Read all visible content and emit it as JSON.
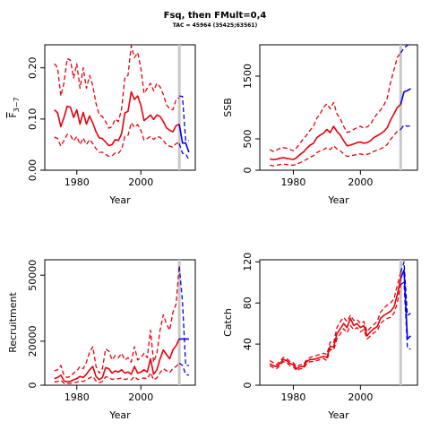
{
  "title": "Fsq, then FMult=0,4",
  "subtitle": "TAC = 45964 (35425;63561)",
  "colors": {
    "historic": "#e8000b",
    "projection": "#0000ee",
    "divider": "#c8c8c8"
  },
  "divider_year": 2012,
  "chart_data": [
    {
      "type": "line",
      "name": "fbar",
      "xlabel": "Year",
      "ylabel_main": "F",
      "ylabel_sub": "3−7",
      "xlim": [
        1970,
        2017
      ],
      "ylim": [
        0,
        0.245
      ],
      "xticks": [
        1980,
        2000
      ],
      "yticks": [
        0.0,
        0.1,
        0.2
      ],
      "ytick_labels": [
        "0.00",
        "0.10",
        "0.20"
      ],
      "historic": {
        "years": [
          1973,
          1974,
          1975,
          1976,
          1977,
          1978,
          1979,
          1980,
          1981,
          1982,
          1983,
          1984,
          1985,
          1986,
          1987,
          1988,
          1989,
          1990,
          1991,
          1992,
          1993,
          1994,
          1995,
          1996,
          1997,
          1998,
          1999,
          2000,
          2001,
          2002,
          2003,
          2004,
          2005,
          2006,
          2007,
          2008,
          2009,
          2010,
          2011,
          2012
        ],
        "mean": [
          0.118,
          0.112,
          0.085,
          0.103,
          0.125,
          0.123,
          0.103,
          0.118,
          0.09,
          0.113,
          0.09,
          0.106,
          0.092,
          0.075,
          0.063,
          0.062,
          0.055,
          0.048,
          0.05,
          0.06,
          0.058,
          0.072,
          0.112,
          0.115,
          0.153,
          0.138,
          0.145,
          0.127,
          0.097,
          0.102,
          0.108,
          0.099,
          0.108,
          0.105,
          0.095,
          0.083,
          0.078,
          0.075,
          0.087,
          0.09
        ],
        "upper": [
          0.208,
          0.2,
          0.145,
          0.17,
          0.218,
          0.215,
          0.18,
          0.208,
          0.16,
          0.2,
          0.16,
          0.185,
          0.165,
          0.13,
          0.108,
          0.105,
          0.095,
          0.082,
          0.085,
          0.1,
          0.095,
          0.12,
          0.182,
          0.185,
          0.243,
          0.22,
          0.23,
          0.2,
          0.15,
          0.16,
          0.17,
          0.155,
          0.17,
          0.163,
          0.148,
          0.128,
          0.12,
          0.118,
          0.138,
          0.142
        ],
        "lower": [
          0.065,
          0.062,
          0.047,
          0.058,
          0.07,
          0.068,
          0.057,
          0.066,
          0.05,
          0.063,
          0.05,
          0.06,
          0.052,
          0.042,
          0.035,
          0.035,
          0.031,
          0.027,
          0.028,
          0.034,
          0.033,
          0.041,
          0.066,
          0.068,
          0.093,
          0.084,
          0.089,
          0.078,
          0.059,
          0.062,
          0.066,
          0.06,
          0.066,
          0.064,
          0.058,
          0.05,
          0.047,
          0.045,
          0.052,
          0.054
        ]
      },
      "projection": {
        "years": [
          2012,
          2013,
          2014,
          2015
        ],
        "mean": [
          0.09,
          0.053,
          0.053,
          0.035
        ],
        "upper": [
          0.145,
          0.144,
          0.058,
          0.058
        ],
        "lower": [
          0.052,
          0.033,
          0.032,
          0.02
        ]
      }
    },
    {
      "type": "line",
      "name": "ssb",
      "xlabel": "Year",
      "ylabel_main": "SSB",
      "ylabel_sub": "",
      "xlim": [
        1970,
        2017
      ],
      "ylim": [
        0,
        2000
      ],
      "xticks": [
        1980,
        2000
      ],
      "yticks": [
        0,
        500,
        1500
      ],
      "ytick_labels": [
        "0",
        "500",
        "1500"
      ],
      "historic": {
        "years": [
          1973,
          1974,
          1975,
          1976,
          1977,
          1978,
          1979,
          1980,
          1981,
          1982,
          1983,
          1984,
          1985,
          1986,
          1987,
          1988,
          1989,
          1990,
          1991,
          1992,
          1993,
          1994,
          1995,
          1996,
          1997,
          1998,
          1999,
          2000,
          2001,
          2002,
          2003,
          2004,
          2005,
          2006,
          2007,
          2008,
          2009,
          2010,
          2011,
          2012
        ],
        "mean": [
          180,
          170,
          175,
          190,
          200,
          190,
          180,
          170,
          200,
          250,
          290,
          350,
          400,
          430,
          520,
          560,
          590,
          650,
          600,
          700,
          620,
          560,
          470,
          390,
          400,
          420,
          440,
          450,
          430,
          440,
          470,
          520,
          550,
          580,
          620,
          680,
          800,
          900,
          1000,
          1050
        ],
        "upper": [
          330,
          300,
          320,
          350,
          360,
          350,
          330,
          310,
          360,
          430,
          500,
          560,
          640,
          700,
          830,
          900,
          1000,
          1060,
          980,
          1080,
          900,
          820,
          700,
          600,
          620,
          650,
          680,
          700,
          670,
          690,
          730,
          830,
          900,
          960,
          1040,
          1150,
          1400,
          1600,
          1800,
          1870
        ],
        "lower": [
          80,
          70,
          80,
          90,
          95,
          90,
          85,
          80,
          95,
          120,
          145,
          175,
          210,
          230,
          280,
          310,
          330,
          360,
          330,
          390,
          340,
          310,
          260,
          220,
          230,
          240,
          250,
          260,
          245,
          255,
          270,
          300,
          320,
          340,
          370,
          410,
          490,
          560,
          620,
          650
        ]
      },
      "projection": {
        "years": [
          2012,
          2013,
          2014,
          2015
        ],
        "mean": [
          1050,
          1250,
          1270,
          1300
        ],
        "upper": [
          1870,
          1950,
          1990,
          2030
        ],
        "lower": [
          650,
          720,
          700,
          710
        ]
      }
    },
    {
      "type": "line",
      "name": "recruitment",
      "xlabel": "Year",
      "ylabel_main": "Recruitment",
      "ylabel_sub": "",
      "xlim": [
        1970,
        2017
      ],
      "ylim": [
        0,
        57000
      ],
      "xticks": [
        1980,
        2000
      ],
      "yticks": [
        0,
        20000,
        50000
      ],
      "ytick_labels": [
        "0",
        "20000",
        "50000"
      ],
      "historic": {
        "years": [
          1973,
          1974,
          1975,
          1976,
          1977,
          1978,
          1979,
          1980,
          1981,
          1982,
          1983,
          1984,
          1985,
          1986,
          1987,
          1988,
          1989,
          1990,
          1991,
          1992,
          1993,
          1994,
          1995,
          1996,
          1997,
          1998,
          1999,
          2000,
          2001,
          2002,
          2003,
          2004,
          2005,
          2006,
          2007,
          2008,
          2009,
          2010,
          2011,
          2012
        ],
        "mean": [
          3000,
          3500,
          4500,
          2000,
          1500,
          1800,
          2500,
          3000,
          4000,
          3500,
          5000,
          7000,
          8500,
          4000,
          2500,
          3500,
          8000,
          7500,
          5500,
          6500,
          6000,
          7000,
          5500,
          6000,
          5000,
          8500,
          5500,
          6000,
          7000,
          6000,
          12000,
          5000,
          7000,
          12000,
          16000,
          14000,
          12000,
          16000,
          18000,
          21000
        ],
        "upper": [
          6500,
          7000,
          9000,
          4500,
          3500,
          4000,
          5500,
          6500,
          8500,
          7500,
          10500,
          15000,
          17500,
          8500,
          5500,
          7500,
          16500,
          15500,
          11500,
          13500,
          12500,
          14500,
          11500,
          12500,
          10500,
          17500,
          11500,
          12500,
          14500,
          12500,
          25000,
          10500,
          14500,
          25000,
          32000,
          28000,
          25000,
          33000,
          37000,
          54000
        ],
        "lower": [
          1500,
          1700,
          2200,
          900,
          700,
          850,
          1200,
          1400,
          1900,
          1700,
          2400,
          3300,
          4000,
          1900,
          1200,
          1700,
          3800,
          3600,
          2600,
          3100,
          2900,
          3300,
          2600,
          2900,
          2400,
          4000,
          2600,
          2900,
          3300,
          2900,
          5700,
          2400,
          3300,
          5700,
          7500,
          6600,
          5700,
          7600,
          8500,
          10000
        ]
      },
      "projection": {
        "years": [
          2012,
          2013,
          2014,
          2015
        ],
        "mean": [
          21000,
          21000,
          21000,
          21000
        ],
        "upper": [
          54000,
          38000,
          9000,
          9000
        ],
        "lower": [
          10000,
          9000,
          5000,
          4500
        ]
      }
    },
    {
      "type": "line",
      "name": "catch",
      "xlabel": "Year",
      "ylabel_main": "Catch",
      "ylabel_sub": "",
      "xlim": [
        1970,
        2017
      ],
      "ylim": [
        0,
        122
      ],
      "xticks": [
        1980,
        2000
      ],
      "yticks": [
        0,
        40,
        80,
        120
      ],
      "ytick_labels": [
        "0",
        "40",
        "80",
        "120"
      ],
      "historic": {
        "years": [
          1973,
          1974,
          1975,
          1976,
          1977,
          1978,
          1979,
          1980,
          1981,
          1982,
          1983,
          1984,
          1985,
          1986,
          1987,
          1988,
          1989,
          1990,
          1991,
          1992,
          1993,
          1994,
          1995,
          1996,
          1997,
          1998,
          1999,
          2000,
          2001,
          2002,
          2003,
          2004,
          2005,
          2006,
          2007,
          2008,
          2009,
          2010,
          2011,
          2012
        ],
        "mean": [
          21,
          19,
          18,
          21,
          25,
          24,
          21,
          20,
          16,
          18,
          18,
          23,
          25,
          25,
          26,
          27,
          28,
          27,
          38,
          37,
          50,
          55,
          60,
          56,
          65,
          58,
          60,
          56,
          58,
          48,
          52,
          55,
          57,
          65,
          68,
          70,
          72,
          76,
          88,
          104
        ],
        "upper": [
          24,
          22,
          20,
          23,
          27,
          26,
          23,
          22,
          18,
          20,
          20,
          25,
          27,
          28,
          29,
          30,
          31,
          30,
          42,
          41,
          56,
          62,
          66,
          62,
          68,
          63,
          64,
          60,
          62,
          52,
          56,
          59,
          62,
          71,
          75,
          78,
          80,
          84,
          97,
          110
        ],
        "lower": [
          19,
          17,
          16,
          19,
          23,
          22,
          19,
          18,
          14,
          16,
          16,
          21,
          23,
          23,
          24,
          25,
          26,
          24,
          35,
          34,
          45,
          50,
          55,
          51,
          58,
          54,
          56,
          52,
          54,
          45,
          48,
          51,
          53,
          60,
          63,
          65,
          66,
          70,
          80,
          98
        ]
      },
      "projection": {
        "years": [
          2012,
          2013,
          2014,
          2015
        ],
        "mean": [
          104,
          112,
          45,
          48
        ],
        "upper": [
          110,
          120,
          68,
          70
        ],
        "lower": [
          98,
          100,
          36,
          35
        ]
      }
    }
  ]
}
